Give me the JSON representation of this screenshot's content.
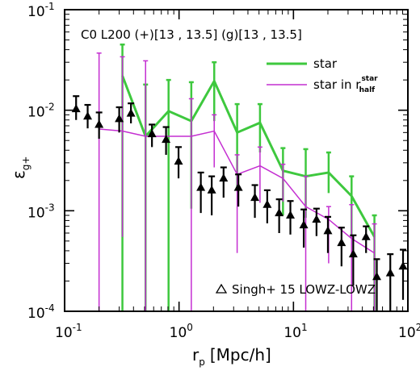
{
  "chart_data": {
    "type": "line",
    "title": "C0 L200 (+)[13 , 13.5] (g)[13 , 13.5]",
    "xlabel": "r",
    "xlabel_sub": "p",
    "xlabel_rest": "[Mpc/h]",
    "ylabel": "ε",
    "ylabel_sub": "g+",
    "xscale": "log",
    "yscale": "log",
    "xlim": [
      0.1,
      100
    ],
    "ylim": [
      0.0001,
      0.1
    ],
    "x_ticks": [
      {
        "value": 0.1,
        "base": "10",
        "exp": "-1"
      },
      {
        "value": 1,
        "base": "10",
        "exp": "0"
      },
      {
        "value": 10,
        "base": "10",
        "exp": "1"
      },
      {
        "value": 100,
        "base": "10",
        "exp": "2"
      }
    ],
    "y_ticks": [
      {
        "value": 0.0001,
        "base": "10",
        "exp": "-4"
      },
      {
        "value": 0.001,
        "base": "10",
        "exp": "-3"
      },
      {
        "value": 0.01,
        "base": "10",
        "exp": "-2"
      },
      {
        "value": 0.1,
        "base": "10",
        "exp": "-1"
      }
    ],
    "legend": {
      "position": "top-right",
      "star_label": "star",
      "half_prefix": "star in r",
      "half_sup": "star",
      "half_sub": "half"
    },
    "series": [
      {
        "name": "star",
        "color": "#3ec83e",
        "x": [
          0.32,
          0.51,
          0.81,
          1.28,
          2.03,
          3.22,
          5.1,
          8.1,
          12.8,
          20.3,
          32.2,
          51.0
        ],
        "y": [
          0.022,
          0.0055,
          0.0098,
          0.0078,
          0.0195,
          0.006,
          0.0075,
          0.0025,
          0.0022,
          0.0024,
          0.0014,
          0.00055
        ],
        "err_hi": [
          0.045,
          0.018,
          0.02,
          0.019,
          0.03,
          0.0115,
          0.0115,
          0.0042,
          0.0041,
          0.0038,
          0.0022,
          0.0009
        ],
        "err_lo": [
          0.0001,
          0.0001,
          0.0001,
          0.00105,
          0.0078,
          0.0016,
          0.0038,
          0.0009,
          0.00085,
          0.0015,
          0.00055,
          0.0001
        ]
      },
      {
        "name": "star in r_half^star",
        "color": "#c42ed1",
        "x": [
          0.2,
          0.32,
          0.51,
          1.28,
          2.03,
          3.22,
          5.1,
          8.1,
          12.8,
          20.3,
          32.2,
          51.0
        ],
        "y": [
          0.0065,
          0.0062,
          0.0055,
          0.0055,
          0.0062,
          0.0023,
          0.0028,
          0.0021,
          0.0011,
          0.00082,
          0.00053,
          0.00038
        ],
        "err_hi": [
          0.037,
          0.034,
          0.031,
          0.013,
          0.009,
          0.0036,
          0.0043,
          0.0029,
          0.0022,
          0.0011,
          0.00115,
          0.00074
        ],
        "err_lo": [
          0.0001,
          0.00055,
          0.0001,
          0.0001,
          0.0027,
          0.00038,
          0.0012,
          0.00123,
          0.0001,
          0.0003,
          0.0001,
          0.0001
        ]
      },
      {
        "name": "Singh+ 15 LOWZ-LOWZ",
        "color": "#000000",
        "marker": "triangle",
        "x": [
          0.126,
          0.159,
          0.2,
          0.3,
          0.38,
          0.58,
          0.77,
          0.99,
          1.55,
          1.93,
          2.45,
          3.3,
          4.6,
          5.9,
          7.5,
          9.4,
          12.3,
          15.9,
          20.0,
          26.3,
          33.3,
          43.1,
          53.5,
          70.2,
          90.7
        ],
        "y": [
          0.0103,
          0.0087,
          0.0072,
          0.0082,
          0.0093,
          0.0058,
          0.0051,
          0.0031,
          0.0017,
          0.0016,
          0.0021,
          0.0017,
          0.00135,
          0.00115,
          0.00095,
          0.0009,
          0.00072,
          0.00082,
          0.00063,
          0.00048,
          0.00037,
          0.00055,
          0.00022,
          0.00024,
          0.00028
        ],
        "err_hi": [
          0.0138,
          0.0113,
          0.0095,
          0.0107,
          0.0117,
          0.0072,
          0.0068,
          0.0043,
          0.0024,
          0.0022,
          0.0027,
          0.0023,
          0.0018,
          0.0016,
          0.0013,
          0.00125,
          0.00103,
          0.00105,
          0.00087,
          0.00068,
          0.00057,
          0.0007,
          0.00033,
          0.00037,
          0.00041
        ],
        "err_lo": [
          0.008,
          0.0066,
          0.0052,
          0.006,
          0.0074,
          0.0043,
          0.0036,
          0.0021,
          0.00095,
          0.0009,
          0.00135,
          0.0011,
          0.00085,
          0.00075,
          0.0006,
          0.00058,
          0.00043,
          0.00056,
          0.00038,
          0.00028,
          0.00018,
          0.00038,
          0.0001,
          0.0001,
          0.00013
        ]
      }
    ],
    "annotation": "Singh+ 15 LOWZ-LOWZ"
  }
}
